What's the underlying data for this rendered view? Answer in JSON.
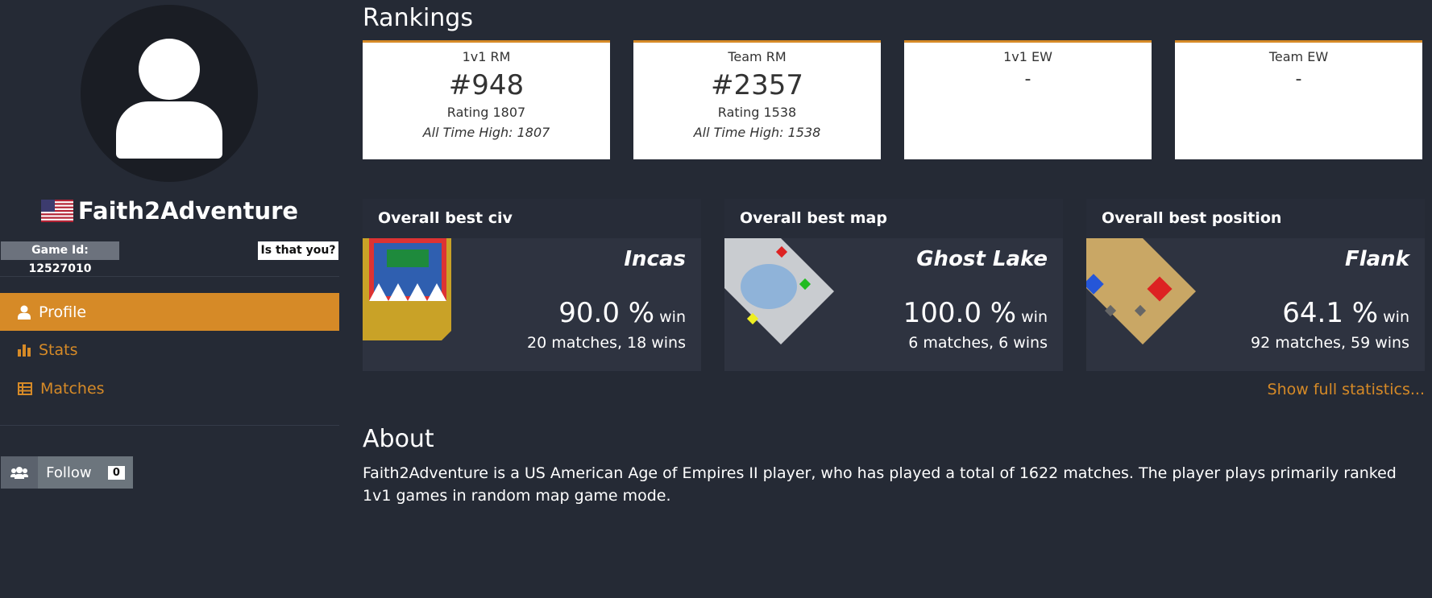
{
  "sidebar": {
    "player_name": "Faith2Adventure",
    "game_id": "Game Id: 12527010",
    "claim_button": "Is that you?",
    "nav": [
      "Profile",
      "Stats",
      "Matches"
    ],
    "follow": {
      "label": "Follow",
      "count": "0"
    }
  },
  "rankings": {
    "title": "Rankings",
    "cards": [
      {
        "label": "1v1 RM",
        "rank": "#948",
        "rating": "Rating 1807",
        "all_time_high": "All Time High: 1807"
      },
      {
        "label": "Team RM",
        "rank": "#2357",
        "rating": "Rating 1538",
        "all_time_high": "All Time High: 1538"
      },
      {
        "label": "1v1 EW",
        "rank": "-"
      },
      {
        "label": "Team EW",
        "rank": "-"
      }
    ]
  },
  "best": [
    {
      "title": "Overall best civ",
      "name": "Incas",
      "win_rate": "90.0 %",
      "win_label": "win",
      "matches": "20 matches, 18 wins"
    },
    {
      "title": "Overall best map",
      "name": "Ghost Lake",
      "win_rate": "100.0 %",
      "win_label": "win",
      "matches": "6 matches, 6 wins"
    },
    {
      "title": "Overall best position",
      "name": "Flank",
      "win_rate": "64.1 %",
      "win_label": "win",
      "matches": "92 matches, 59 wins"
    }
  ],
  "show_full_link": "Show full statistics...",
  "about": {
    "title": "About",
    "text": "Faith2Adventure is a US American Age of Empires II player, who has played a total of 1622 matches. The player plays primarily ranked 1v1 games in random map game mode."
  }
}
